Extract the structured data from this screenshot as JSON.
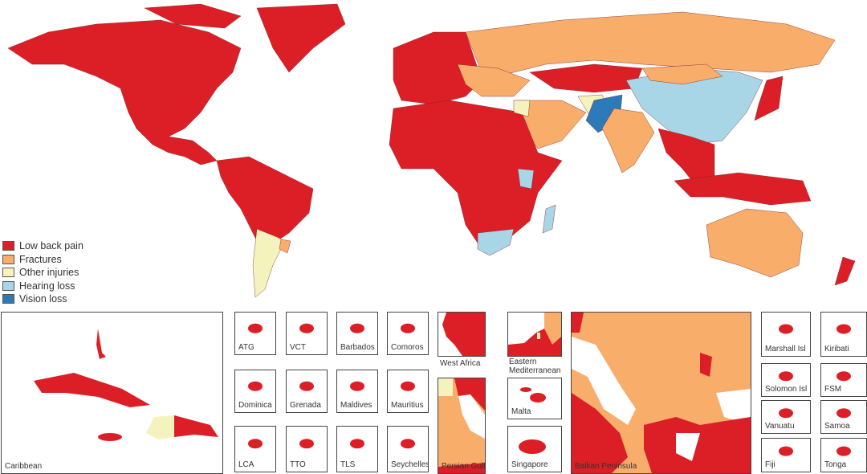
{
  "colors": {
    "low_back_pain": "#dc1f26",
    "fractures": "#f8ad6b",
    "other_injuries": "#f5f3bd",
    "hearing_loss": "#a8d6e6",
    "vision_loss": "#2c7bb8"
  },
  "legend": [
    {
      "label": "Low back pain",
      "color": "#dc1f26"
    },
    {
      "label": "Fractures",
      "color": "#f8ad6b"
    },
    {
      "label": "Other injuries",
      "color": "#f5f3bd"
    },
    {
      "label": "Hearing loss",
      "color": "#a8d6e6"
    },
    {
      "label": "Vision loss",
      "color": "#2c7bb8"
    }
  ],
  "insets": {
    "caribbean": "Caribbean",
    "atg": "ATG",
    "vct": "VCT",
    "barbados": "Barbados",
    "comoros": "Comoros",
    "dominica": "Dominica",
    "grenada": "Grenada",
    "maldives": "Maldives",
    "mauritius": "Mauritius",
    "lca": "LCA",
    "tto": "TTO",
    "tls": "TLS",
    "seychelles": "Seychelles",
    "west_africa": "West Africa",
    "eastern_med": "Eastern Mediterranean",
    "persian_gulf": "Persian Gulf",
    "malta": "Malta",
    "singapore": "Singapore",
    "balkan": "Balkan Peninsula",
    "marshall": "Marshall Isl",
    "kiribati": "Kiribati",
    "solomon": "Solomon Isl",
    "fsm": "FSM",
    "vanuatu": "Vanuatu",
    "samoa": "Samoa",
    "fiji": "Fiji",
    "tonga": "Tonga"
  }
}
